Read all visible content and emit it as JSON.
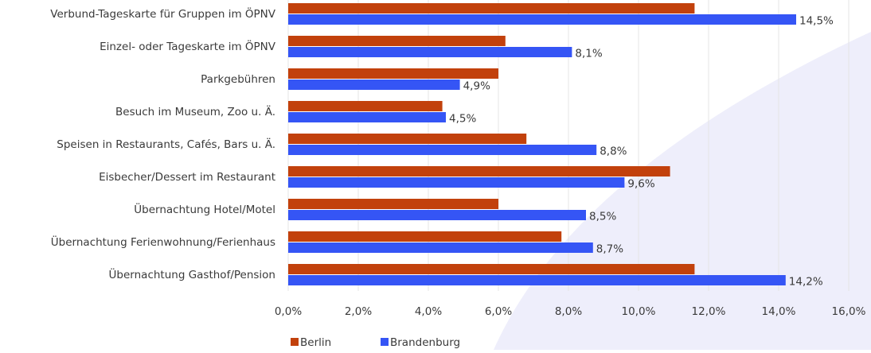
{
  "chart_data": {
    "type": "hbar",
    "categories": [
      "Verbund-Tageskarte für Gruppen im  ÖPNV",
      "Einzel- oder Tageskarte im ÖPNV",
      "Parkgebühren",
      "Besuch im Museum, Zoo u. Ä.",
      "Speisen in Restaurants, Cafés, Bars u. Ä.",
      "Eisbecher/Dessert im Restaurant",
      "Übernachtung Hotel/Motel",
      "Übernachtung Ferienwohnung/Ferienhaus",
      "Übernachtung Gasthof/Pension"
    ],
    "series": [
      {
        "name": "Berlin",
        "color": "#c2410c",
        "values": [
          11.6,
          6.2,
          6.0,
          4.4,
          6.8,
          10.9,
          6.0,
          7.8,
          11.6
        ]
      },
      {
        "name": "Brandenburg",
        "color": "#3555f5",
        "values": [
          14.5,
          8.1,
          4.9,
          4.5,
          8.8,
          9.6,
          8.5,
          8.7,
          14.2
        ],
        "value_labels": [
          "14,5%",
          "8,1%",
          "4,9%",
          "4,5%",
          "8,8%",
          "9,6%",
          "8,5%",
          "8,7%",
          "14,2%"
        ]
      }
    ],
    "xlim": [
      0,
      16
    ],
    "xticks": [
      {
        "value": 0,
        "label": "0,0%"
      },
      {
        "value": 2,
        "label": "2,0%"
      },
      {
        "value": 4,
        "label": "4,0%"
      },
      {
        "value": 6,
        "label": "6,0%"
      },
      {
        "value": 8,
        "label": "8,0%"
      },
      {
        "value": 10,
        "label": "10,0%"
      },
      {
        "value": 12,
        "label": "12,0%"
      },
      {
        "value": 14,
        "label": "14,0%"
      },
      {
        "value": 16,
        "label": "16,0%"
      }
    ],
    "grid": true,
    "legend": "bottom"
  }
}
